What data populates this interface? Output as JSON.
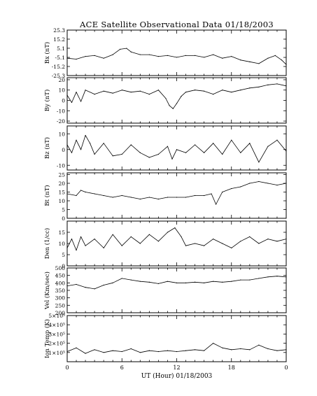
{
  "chart_data": {
    "type": "line",
    "title": "ACE Satellite Observational Data   01/18/2003",
    "xlabel": "UT (Hour)   01/18/2003",
    "x_ticks": [
      "0",
      "6",
      "12",
      "18",
      "0"
    ],
    "xlim_hours": [
      0,
      24
    ],
    "grid": false,
    "panels": [
      {
        "id": "bx",
        "ylabel": "Bx (nT)",
        "ylim": [
          -25.3,
          25.3
        ],
        "y_ticks": [
          -25.3,
          -15.2,
          -5.1,
          5.1,
          15.2,
          25.3
        ],
        "y_tick_labels": [
          "-25.3",
          "-15.2",
          "-5.1",
          "5.1",
          "15.2",
          "25.3"
        ],
        "points": [
          [
            0,
            -6
          ],
          [
            1,
            -7
          ],
          [
            2,
            -4
          ],
          [
            3,
            -3
          ],
          [
            4,
            -6
          ],
          [
            5,
            -2
          ],
          [
            5.8,
            4
          ],
          [
            6.5,
            5
          ],
          [
            7,
            1
          ],
          [
            8,
            -2
          ],
          [
            9,
            -2
          ],
          [
            10,
            -4
          ],
          [
            11,
            -3
          ],
          [
            12,
            -5
          ],
          [
            13,
            -3
          ],
          [
            14,
            -3
          ],
          [
            15,
            -5
          ],
          [
            16,
            -2
          ],
          [
            17,
            -6
          ],
          [
            18,
            -4
          ],
          [
            19,
            -8
          ],
          [
            20,
            -10
          ],
          [
            21,
            -12
          ],
          [
            22,
            -6
          ],
          [
            22.8,
            -3
          ],
          [
            23.5,
            -8
          ],
          [
            24,
            -13
          ]
        ]
      },
      {
        "id": "by",
        "ylabel": "By (nT)",
        "ylim": [
          -22,
          22
        ],
        "y_ticks": [
          -20,
          -10,
          0,
          10,
          20
        ],
        "y_tick_labels": [
          "-20",
          "-10",
          "0",
          "10",
          "20"
        ],
        "points": [
          [
            0,
            5
          ],
          [
            0.5,
            -2
          ],
          [
            1,
            8
          ],
          [
            1.5,
            -1
          ],
          [
            2,
            10
          ],
          [
            3,
            6
          ],
          [
            4,
            9
          ],
          [
            5,
            7
          ],
          [
            6,
            10
          ],
          [
            7,
            8
          ],
          [
            8,
            9
          ],
          [
            9,
            6
          ],
          [
            10,
            10
          ],
          [
            10.8,
            2
          ],
          [
            11.2,
            -5
          ],
          [
            11.6,
            -8
          ],
          [
            12,
            -3
          ],
          [
            12.5,
            4
          ],
          [
            13,
            8
          ],
          [
            14,
            10
          ],
          [
            15,
            9
          ],
          [
            16,
            6
          ],
          [
            17,
            10
          ],
          [
            18,
            8
          ],
          [
            19,
            10
          ],
          [
            20,
            12
          ],
          [
            21,
            13
          ],
          [
            22,
            15
          ],
          [
            23,
            16
          ],
          [
            24,
            14
          ]
        ]
      },
      {
        "id": "bz",
        "ylabel": "Bz (nT)",
        "ylim": [
          -13,
          15
        ],
        "y_ticks": [
          -10,
          0,
          10
        ],
        "y_tick_labels": [
          "-10",
          "0",
          "10"
        ],
        "points": [
          [
            0,
            3
          ],
          [
            0.5,
            -2
          ],
          [
            1,
            6
          ],
          [
            1.5,
            0
          ],
          [
            2,
            9
          ],
          [
            2.5,
            4
          ],
          [
            3,
            -3
          ],
          [
            4,
            4
          ],
          [
            5,
            -4
          ],
          [
            6,
            -3
          ],
          [
            7,
            3
          ],
          [
            8,
            -2
          ],
          [
            9,
            -5
          ],
          [
            10,
            -3
          ],
          [
            11,
            2
          ],
          [
            11.5,
            -6
          ],
          [
            12,
            0
          ],
          [
            13,
            -2
          ],
          [
            14,
            3
          ],
          [
            15,
            -2
          ],
          [
            16,
            4
          ],
          [
            17,
            -3
          ],
          [
            18,
            6
          ],
          [
            19,
            -2
          ],
          [
            20,
            4
          ],
          [
            21,
            -8
          ],
          [
            22,
            2
          ],
          [
            23,
            6
          ],
          [
            24,
            -1
          ]
        ]
      },
      {
        "id": "bt",
        "ylabel": "Bt (nT)",
        "ylim": [
          0,
          26
        ],
        "y_ticks": [
          0,
          5,
          10,
          15,
          20,
          25
        ],
        "y_tick_labels": [
          "0",
          "5",
          "10",
          "15",
          "20",
          "25"
        ],
        "points": [
          [
            0,
            14
          ],
          [
            1,
            13
          ],
          [
            1.5,
            16
          ],
          [
            2,
            15
          ],
          [
            3,
            14
          ],
          [
            4,
            13
          ],
          [
            5,
            12
          ],
          [
            6,
            13
          ],
          [
            7,
            12
          ],
          [
            8,
            11
          ],
          [
            9,
            12
          ],
          [
            10,
            11
          ],
          [
            11,
            12
          ],
          [
            12,
            12
          ],
          [
            13,
            12
          ],
          [
            14,
            13
          ],
          [
            15,
            13
          ],
          [
            15.8,
            14
          ],
          [
            16.3,
            8
          ],
          [
            17,
            15
          ],
          [
            18,
            17
          ],
          [
            19,
            18
          ],
          [
            20,
            20
          ],
          [
            21,
            21
          ],
          [
            22,
            20
          ],
          [
            23,
            19
          ],
          [
            24,
            20
          ]
        ]
      },
      {
        "id": "den",
        "ylabel": "Den (1/cc)",
        "ylim": [
          0,
          20
        ],
        "y_ticks": [
          0,
          5,
          10,
          15
        ],
        "y_tick_labels": [
          "0",
          "5",
          "10",
          "15"
        ],
        "points": [
          [
            0,
            8
          ],
          [
            0.5,
            12
          ],
          [
            1,
            7
          ],
          [
            1.5,
            13
          ],
          [
            2,
            9
          ],
          [
            3,
            12
          ],
          [
            4,
            8
          ],
          [
            5,
            14
          ],
          [
            6,
            9
          ],
          [
            7,
            13
          ],
          [
            8,
            10
          ],
          [
            9,
            14
          ],
          [
            10,
            11
          ],
          [
            11,
            15
          ],
          [
            11.8,
            17
          ],
          [
            12.5,
            13
          ],
          [
            13,
            9
          ],
          [
            14,
            10
          ],
          [
            15,
            9
          ],
          [
            16,
            12
          ],
          [
            17,
            10
          ],
          [
            18,
            8
          ],
          [
            19,
            11
          ],
          [
            20,
            13
          ],
          [
            21,
            10
          ],
          [
            22,
            12
          ],
          [
            23,
            11
          ],
          [
            24,
            12
          ]
        ]
      },
      {
        "id": "vel",
        "ylabel": "Vel (Km/sec)",
        "ylim": [
          200,
          500
        ],
        "y_ticks": [
          200,
          250,
          300,
          350,
          400,
          450,
          500
        ],
        "y_tick_labels": [
          "200",
          "250",
          "300",
          "350",
          "400",
          "450",
          "500"
        ],
        "points": [
          [
            0,
            380
          ],
          [
            1,
            390
          ],
          [
            2,
            370
          ],
          [
            3,
            360
          ],
          [
            4,
            385
          ],
          [
            5,
            400
          ],
          [
            6,
            430
          ],
          [
            7,
            420
          ],
          [
            8,
            410
          ],
          [
            9,
            405
          ],
          [
            10,
            395
          ],
          [
            11,
            410
          ],
          [
            12,
            400
          ],
          [
            13,
            400
          ],
          [
            14,
            405
          ],
          [
            15,
            400
          ],
          [
            16,
            410
          ],
          [
            17,
            405
          ],
          [
            18,
            410
          ],
          [
            19,
            420
          ],
          [
            20,
            420
          ],
          [
            21,
            430
          ],
          [
            22,
            440
          ],
          [
            23,
            445
          ],
          [
            24,
            440
          ]
        ]
      },
      {
        "id": "temp",
        "ylabel": "Ion Temp (K)",
        "ylim": [
          0,
          500000
        ],
        "y_ticks": [
          100000,
          200000,
          300000,
          400000,
          500000
        ],
        "y_tick_labels": [
          "1×10⁵",
          "2×10⁵",
          "3×10⁵",
          "4×10⁵",
          "5×10⁵"
        ],
        "points": [
          [
            0,
            110000
          ],
          [
            1,
            150000
          ],
          [
            2,
            90000
          ],
          [
            3,
            130000
          ],
          [
            4,
            100000
          ],
          [
            5,
            120000
          ],
          [
            6,
            110000
          ],
          [
            7,
            140000
          ],
          [
            8,
            100000
          ],
          [
            9,
            120000
          ],
          [
            10,
            110000
          ],
          [
            11,
            120000
          ],
          [
            12,
            110000
          ],
          [
            13,
            120000
          ],
          [
            14,
            130000
          ],
          [
            15,
            120000
          ],
          [
            16,
            200000
          ],
          [
            17,
            150000
          ],
          [
            18,
            130000
          ],
          [
            19,
            140000
          ],
          [
            20,
            130000
          ],
          [
            21,
            180000
          ],
          [
            22,
            140000
          ],
          [
            23,
            120000
          ],
          [
            24,
            130000
          ]
        ]
      }
    ]
  }
}
